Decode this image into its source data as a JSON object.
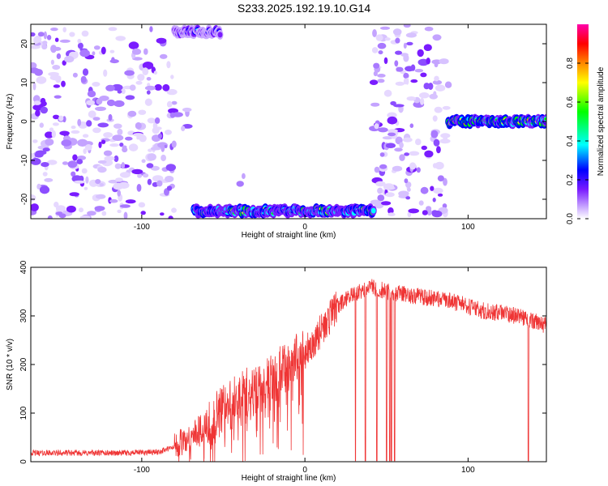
{
  "title": "S233.2025.192.19.10.G14",
  "chart_data": [
    {
      "type": "heatmap",
      "xlabel": "Height of straight line (km)",
      "ylabel": "Frequency (Hz)",
      "xlim": [
        -168,
        148
      ],
      "ylim": [
        -25,
        25
      ],
      "xticks": [
        -100,
        0,
        100
      ],
      "yticks": [
        -20,
        -10,
        0,
        10,
        20
      ],
      "colorbar": {
        "label": "Normalized spectral amplitude",
        "range": [
          0,
          1
        ],
        "ticks": [
          0.0,
          0.2,
          0.4,
          0.6,
          0.8
        ],
        "colors": [
          "#ffffff",
          "#c9a8ff",
          "#7a1cff",
          "#0000ff",
          "#00ffff",
          "#00ff00",
          "#ffff00",
          "#ff8800",
          "#ff0000",
          "#ff00aa"
        ]
      },
      "regions": [
        {
          "x": [
            -168,
            -80
          ],
          "y": [
            -25,
            25
          ],
          "level": 0.12
        },
        {
          "x": [
            42,
            88
          ],
          "y": [
            -25,
            25
          ],
          "level": 0.12
        },
        {
          "x": [
            -82,
            -70
          ],
          "y": [
            -6,
            8
          ],
          "level": 0.05
        },
        {
          "x": [
            -42,
            -32
          ],
          "y": [
            -18,
            -10
          ],
          "level": 0.05
        }
      ],
      "ridges": [
        {
          "x": [
            -68,
            42
          ],
          "y": -23,
          "level": 0.7
        },
        {
          "x": [
            -80,
            -52
          ],
          "y": 23,
          "level": 0.4
        },
        {
          "x": [
            88,
            148
          ],
          "y": 0,
          "level": 0.85
        }
      ]
    },
    {
      "type": "line",
      "xlabel": "Height of straight line (km)",
      "ylabel": "SNR (10 * v/v)",
      "xlim": [
        -168,
        148
      ],
      "ylim": [
        0,
        400
      ],
      "xticks": [
        -100,
        0,
        100
      ],
      "yticks": [
        0,
        100,
        200,
        300,
        400
      ],
      "color": "#ef3535",
      "x": [
        -168,
        -140,
        -110,
        -90,
        -80,
        -70,
        -60,
        -50,
        -40,
        -30,
        -20,
        -10,
        0,
        10,
        20,
        30,
        40,
        50,
        60,
        70,
        80,
        90,
        100,
        110,
        120,
        130,
        140,
        148
      ],
      "y": [
        18,
        18,
        18,
        20,
        30,
        50,
        80,
        110,
        130,
        150,
        170,
        200,
        225,
        270,
        320,
        345,
        360,
        350,
        345,
        340,
        335,
        330,
        320,
        310,
        305,
        300,
        290,
        280
      ],
      "dropouts": [
        31,
        37,
        44,
        50,
        52,
        53,
        55,
        137
      ]
    }
  ]
}
